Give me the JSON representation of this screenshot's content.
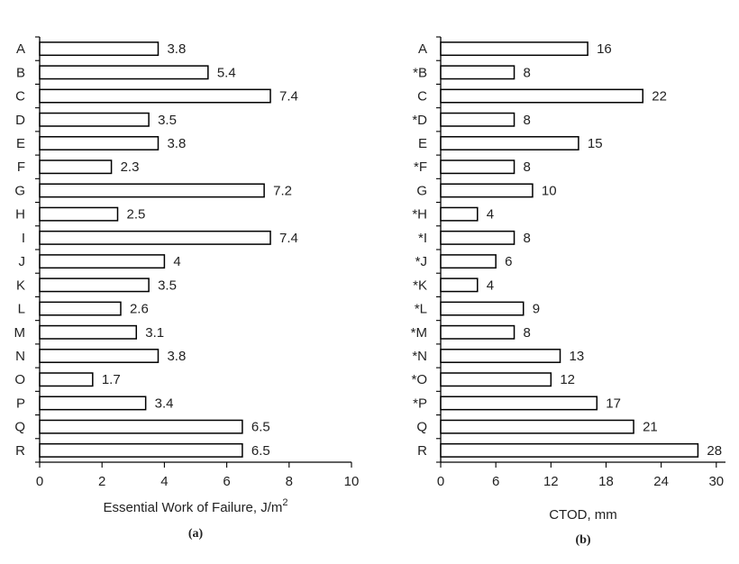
{
  "chart_data": [
    {
      "type": "bar",
      "orientation": "horizontal",
      "categories": [
        "A",
        "B",
        "C",
        "D",
        "E",
        "F",
        "G",
        "H",
        "I",
        "J",
        "K",
        "L",
        "M",
        "N",
        "O",
        "P",
        "Q",
        "R"
      ],
      "values": [
        3.8,
        5.4,
        7.4,
        3.5,
        3.8,
        2.3,
        7.2,
        2.5,
        7.4,
        4,
        3.5,
        2.6,
        3.1,
        3.8,
        1.7,
        3.4,
        6.5,
        6.5
      ],
      "value_labels": [
        "3.8",
        "5.4",
        "7.4",
        "3.5",
        "3.8",
        "2.3",
        "7.2",
        "2.5",
        "7.4",
        "4",
        "3.5",
        "2.6",
        "3.1",
        "3.8",
        "1.7",
        "3.4",
        "6.5",
        "6.5"
      ],
      "xlabel": "Essential Work of Failure, J/m",
      "xlabel_sup": "2",
      "xlim": [
        0,
        10
      ],
      "xticks": [
        0,
        2,
        4,
        6,
        8,
        10
      ],
      "xtick_labels": [
        "0",
        "2",
        "4",
        "6",
        "8",
        "10"
      ],
      "caption": "(a)",
      "grid": false
    },
    {
      "type": "bar",
      "orientation": "horizontal",
      "categories": [
        "A",
        "*B",
        "C",
        "*D",
        "E",
        "*F",
        "G",
        "*H",
        "*I",
        "*J",
        "*K",
        "*L",
        "*M",
        "*N",
        "*O",
        "*P",
        "Q",
        "R"
      ],
      "values": [
        16,
        8,
        22,
        8,
        15,
        8,
        10,
        4,
        8,
        6,
        4,
        9,
        8,
        13,
        12,
        17,
        21,
        28
      ],
      "value_labels": [
        "16",
        "8",
        "22",
        "8",
        "15",
        "8",
        "10",
        "4",
        "8",
        "6",
        "4",
        "9",
        "8",
        "13",
        "12",
        "17",
        "21",
        "28"
      ],
      "xlabel": "CTOD, mm",
      "xlim": [
        0,
        31
      ],
      "xticks": [
        0,
        6,
        12,
        18,
        24,
        30
      ],
      "xtick_labels": [
        "0",
        "6",
        "12",
        "18",
        "24",
        "30"
      ],
      "caption": "(b)",
      "grid": false
    }
  ]
}
